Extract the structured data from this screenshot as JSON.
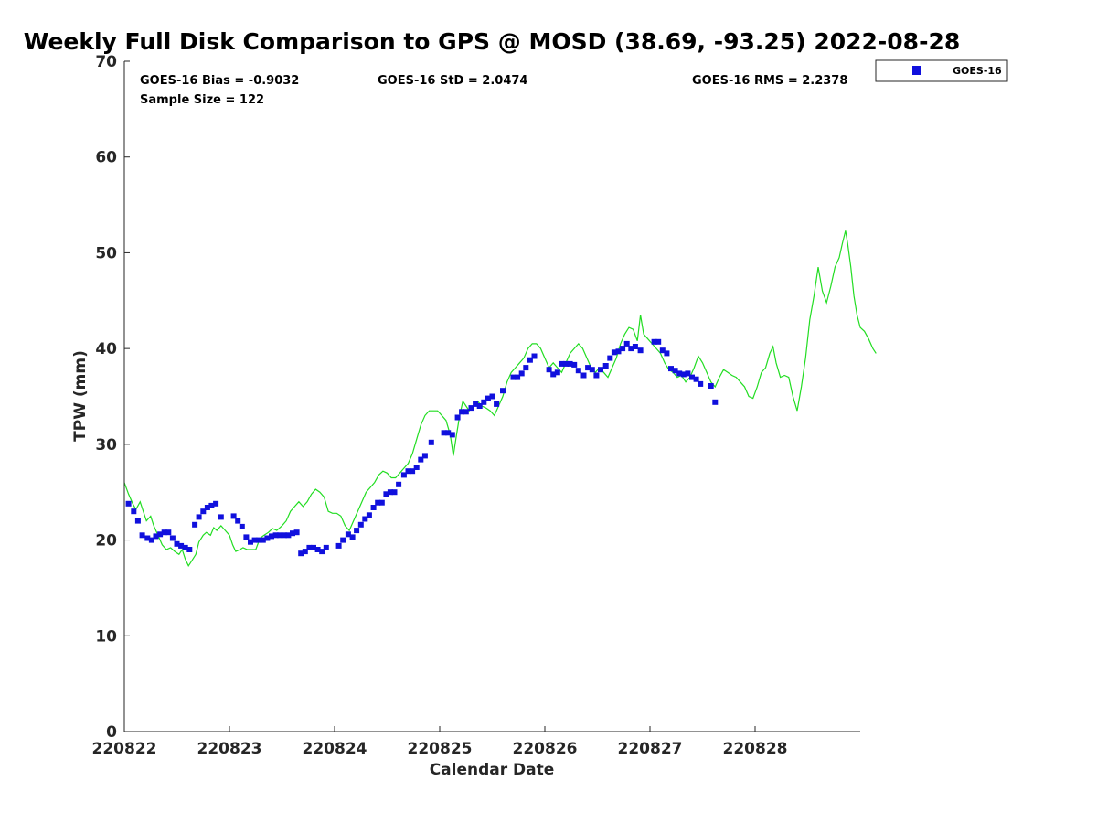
{
  "chart_data": {
    "type": "scatter",
    "title": "Weekly Full Disk Comparison to GPS @ MOSD (38.69, -93.25) 2022-08-28",
    "xlabel": "Calendar Date",
    "ylabel": "TPW (mm)",
    "xlim": [
      0,
      7
    ],
    "ylim": [
      0,
      70
    ],
    "x_ticks": [
      0,
      1,
      2,
      3,
      4,
      5,
      6
    ],
    "x_tick_labels": [
      "220822",
      "220823",
      "220824",
      "220825",
      "220826",
      "220827",
      "220828"
    ],
    "y_ticks": [
      0,
      10,
      20,
      30,
      40,
      50,
      60,
      70
    ],
    "y_tick_labels": [
      "0",
      "10",
      "20",
      "30",
      "40",
      "50",
      "60",
      "70"
    ],
    "stats": {
      "bias": "GOES-16 Bias = -0.9032",
      "std": "GOES-16 StD = 2.0474",
      "rms": "GOES-16 RMS = 2.2378",
      "sample": "Sample Size = 122"
    },
    "legend": {
      "entries": [
        "GOES-16"
      ],
      "position": "top-right outside"
    },
    "series": [
      {
        "name": "GPS",
        "kind": "line",
        "color": "#22dd22",
        "points": [
          [
            0.0,
            26.0
          ],
          [
            0.04,
            24.8
          ],
          [
            0.08,
            23.8
          ],
          [
            0.11,
            23.2
          ],
          [
            0.15,
            24.0
          ],
          [
            0.18,
            23.0
          ],
          [
            0.21,
            22.0
          ],
          [
            0.25,
            22.5
          ],
          [
            0.28,
            21.5
          ],
          [
            0.32,
            20.5
          ],
          [
            0.36,
            19.5
          ],
          [
            0.4,
            19.0
          ],
          [
            0.44,
            19.2
          ],
          [
            0.48,
            18.8
          ],
          [
            0.52,
            18.5
          ],
          [
            0.55,
            19.0
          ],
          [
            0.58,
            18.0
          ],
          [
            0.61,
            17.3
          ],
          [
            0.64,
            17.8
          ],
          [
            0.68,
            18.5
          ],
          [
            0.71,
            19.8
          ],
          [
            0.75,
            20.5
          ],
          [
            0.78,
            20.8
          ],
          [
            0.82,
            20.5
          ],
          [
            0.85,
            21.3
          ],
          [
            0.88,
            21.0
          ],
          [
            0.92,
            21.5
          ],
          [
            0.96,
            21.0
          ],
          [
            1.0,
            20.5
          ],
          [
            1.03,
            19.5
          ],
          [
            1.06,
            18.8
          ],
          [
            1.1,
            19.0
          ],
          [
            1.13,
            19.2
          ],
          [
            1.17,
            19.0
          ],
          [
            1.21,
            19.0
          ],
          [
            1.25,
            19.0
          ],
          [
            1.29,
            20.2
          ],
          [
            1.33,
            20.5
          ],
          [
            1.37,
            20.8
          ],
          [
            1.41,
            21.2
          ],
          [
            1.45,
            21.0
          ],
          [
            1.5,
            21.5
          ],
          [
            1.54,
            22.0
          ],
          [
            1.58,
            23.0
          ],
          [
            1.62,
            23.5
          ],
          [
            1.66,
            24.0
          ],
          [
            1.7,
            23.5
          ],
          [
            1.74,
            24.0
          ],
          [
            1.78,
            24.8
          ],
          [
            1.82,
            25.3
          ],
          [
            1.86,
            25.0
          ],
          [
            1.9,
            24.5
          ],
          [
            1.94,
            23.0
          ],
          [
            1.98,
            22.8
          ],
          [
            2.02,
            22.8
          ],
          [
            2.06,
            22.5
          ],
          [
            2.1,
            21.5
          ],
          [
            2.14,
            21.0
          ],
          [
            2.18,
            22.0
          ],
          [
            2.22,
            23.0
          ],
          [
            2.26,
            24.0
          ],
          [
            2.3,
            25.0
          ],
          [
            2.34,
            25.5
          ],
          [
            2.38,
            26.0
          ],
          [
            2.42,
            26.8
          ],
          [
            2.46,
            27.2
          ],
          [
            2.5,
            27.0
          ],
          [
            2.54,
            26.5
          ],
          [
            2.58,
            26.5
          ],
          [
            2.62,
            27.0
          ],
          [
            2.66,
            27.5
          ],
          [
            2.7,
            28.0
          ],
          [
            2.74,
            29.0
          ],
          [
            2.78,
            30.5
          ],
          [
            2.82,
            32.0
          ],
          [
            2.86,
            33.0
          ],
          [
            2.9,
            33.5
          ],
          [
            2.94,
            33.5
          ],
          [
            2.98,
            33.5
          ],
          [
            3.02,
            33.0
          ],
          [
            3.06,
            32.5
          ],
          [
            3.1,
            31.0
          ],
          [
            3.13,
            28.8
          ],
          [
            3.16,
            31.0
          ],
          [
            3.19,
            33.0
          ],
          [
            3.22,
            34.5
          ],
          [
            3.25,
            34.0
          ],
          [
            3.28,
            33.5
          ],
          [
            3.32,
            34.0
          ],
          [
            3.36,
            34.5
          ],
          [
            3.4,
            34.0
          ],
          [
            3.44,
            33.8
          ],
          [
            3.48,
            33.5
          ],
          [
            3.52,
            33.0
          ],
          [
            3.56,
            34.0
          ],
          [
            3.6,
            35.0
          ],
          [
            3.64,
            36.5
          ],
          [
            3.68,
            37.5
          ],
          [
            3.72,
            38.0
          ],
          [
            3.76,
            38.5
          ],
          [
            3.8,
            39.0
          ],
          [
            3.84,
            40.0
          ],
          [
            3.88,
            40.5
          ],
          [
            3.92,
            40.5
          ],
          [
            3.96,
            40.0
          ],
          [
            4.0,
            39.0
          ],
          [
            4.04,
            38.0
          ],
          [
            4.08,
            38.5
          ],
          [
            4.12,
            38.0
          ],
          [
            4.16,
            37.5
          ],
          [
            4.2,
            38.5
          ],
          [
            4.24,
            39.5
          ],
          [
            4.28,
            40.0
          ],
          [
            4.32,
            40.5
          ],
          [
            4.36,
            40.0
          ],
          [
            4.4,
            39.0
          ],
          [
            4.44,
            38.0
          ],
          [
            4.48,
            37.5
          ],
          [
            4.52,
            38.0
          ],
          [
            4.56,
            37.5
          ],
          [
            4.6,
            37.0
          ],
          [
            4.64,
            38.0
          ],
          [
            4.68,
            39.0
          ],
          [
            4.72,
            40.5
          ],
          [
            4.76,
            41.5
          ],
          [
            4.8,
            42.2
          ],
          [
            4.84,
            42.0
          ],
          [
            4.88,
            40.8
          ],
          [
            4.91,
            43.5
          ],
          [
            4.94,
            41.5
          ],
          [
            4.98,
            41.0
          ],
          [
            5.02,
            40.5
          ],
          [
            5.06,
            40.0
          ],
          [
            5.1,
            39.5
          ],
          [
            5.14,
            38.5
          ],
          [
            5.18,
            37.8
          ],
          [
            5.22,
            37.5
          ],
          [
            5.26,
            37.0
          ],
          [
            5.3,
            37.2
          ],
          [
            5.34,
            36.5
          ],
          [
            5.38,
            37.0
          ],
          [
            5.42,
            38.0
          ],
          [
            5.46,
            39.2
          ],
          [
            5.5,
            38.5
          ],
          [
            5.54,
            37.5
          ],
          [
            5.58,
            36.5
          ],
          [
            5.62,
            36.0
          ],
          [
            5.66,
            37.0
          ],
          [
            5.7,
            37.8
          ],
          [
            5.74,
            37.5
          ],
          [
            5.78,
            37.2
          ],
          [
            5.82,
            37.0
          ],
          [
            5.86,
            36.5
          ],
          [
            5.9,
            36.0
          ],
          [
            5.94,
            35.0
          ],
          [
            5.98,
            34.8
          ],
          [
            6.02,
            36.0
          ],
          [
            6.06,
            37.5
          ],
          [
            6.1,
            38.0
          ],
          [
            6.14,
            39.5
          ],
          [
            6.17,
            40.2
          ],
          [
            6.2,
            38.5
          ],
          [
            6.24,
            37.0
          ],
          [
            6.28,
            37.2
          ],
          [
            6.32,
            37.0
          ],
          [
            6.36,
            35.0
          ],
          [
            6.4,
            33.5
          ],
          [
            6.44,
            36.0
          ],
          [
            6.48,
            39.0
          ],
          [
            6.52,
            43.0
          ],
          [
            6.56,
            45.5
          ],
          [
            6.6,
            48.5
          ],
          [
            6.64,
            46.0
          ],
          [
            6.68,
            44.8
          ],
          [
            6.72,
            46.5
          ],
          [
            6.76,
            48.5
          ],
          [
            6.8,
            49.5
          ],
          [
            6.83,
            51.0
          ],
          [
            6.86,
            52.3
          ],
          [
            6.88,
            51.0
          ],
          [
            6.91,
            48.5
          ],
          [
            6.94,
            45.5
          ],
          [
            6.97,
            43.5
          ],
          [
            7.0,
            42.2
          ],
          [
            7.04,
            41.8
          ],
          [
            7.08,
            41.0
          ],
          [
            7.12,
            40.0
          ],
          [
            7.15,
            39.5
          ]
        ]
      },
      {
        "name": "GOES-16",
        "kind": "markers",
        "color": "#1010dd",
        "points": [
          [
            0.04,
            23.8
          ],
          [
            0.09,
            23.0
          ],
          [
            0.13,
            22.0
          ],
          [
            0.17,
            20.5
          ],
          [
            0.22,
            20.2
          ],
          [
            0.26,
            20.0
          ],
          [
            0.3,
            20.4
          ],
          [
            0.34,
            20.6
          ],
          [
            0.38,
            20.8
          ],
          [
            0.42,
            20.8
          ],
          [
            0.46,
            20.2
          ],
          [
            0.5,
            19.6
          ],
          [
            0.54,
            19.4
          ],
          [
            0.58,
            19.2
          ],
          [
            0.62,
            19.0
          ],
          [
            0.67,
            21.6
          ],
          [
            0.71,
            22.4
          ],
          [
            0.75,
            23.0
          ],
          [
            0.79,
            23.4
          ],
          [
            0.83,
            23.6
          ],
          [
            0.87,
            23.8
          ],
          [
            0.92,
            22.4
          ],
          [
            1.04,
            22.5
          ],
          [
            1.08,
            22.0
          ],
          [
            1.12,
            21.4
          ],
          [
            1.16,
            20.3
          ],
          [
            1.2,
            19.8
          ],
          [
            1.24,
            20.0
          ],
          [
            1.28,
            20.0
          ],
          [
            1.32,
            20.0
          ],
          [
            1.36,
            20.2
          ],
          [
            1.4,
            20.4
          ],
          [
            1.44,
            20.5
          ],
          [
            1.48,
            20.5
          ],
          [
            1.52,
            20.5
          ],
          [
            1.56,
            20.5
          ],
          [
            1.6,
            20.7
          ],
          [
            1.64,
            20.8
          ],
          [
            1.68,
            18.6
          ],
          [
            1.72,
            18.8
          ],
          [
            1.76,
            19.2
          ],
          [
            1.8,
            19.2
          ],
          [
            1.84,
            19.0
          ],
          [
            1.88,
            18.8
          ],
          [
            1.92,
            19.2
          ],
          [
            2.04,
            19.4
          ],
          [
            2.08,
            20.0
          ],
          [
            2.13,
            20.6
          ],
          [
            2.17,
            20.3
          ],
          [
            2.21,
            21.0
          ],
          [
            2.25,
            21.6
          ],
          [
            2.29,
            22.2
          ],
          [
            2.33,
            22.6
          ],
          [
            2.37,
            23.4
          ],
          [
            2.41,
            23.9
          ],
          [
            2.45,
            23.9
          ],
          [
            2.49,
            24.8
          ],
          [
            2.53,
            25.0
          ],
          [
            2.57,
            25.0
          ],
          [
            2.61,
            25.8
          ],
          [
            2.66,
            26.8
          ],
          [
            2.7,
            27.2
          ],
          [
            2.74,
            27.2
          ],
          [
            2.78,
            27.6
          ],
          [
            2.82,
            28.4
          ],
          [
            2.86,
            28.8
          ],
          [
            2.92,
            30.2
          ],
          [
            3.04,
            31.2
          ],
          [
            3.08,
            31.2
          ],
          [
            3.12,
            31.0
          ],
          [
            3.17,
            32.8
          ],
          [
            3.21,
            33.4
          ],
          [
            3.25,
            33.4
          ],
          [
            3.3,
            33.8
          ],
          [
            3.34,
            34.2
          ],
          [
            3.38,
            34.0
          ],
          [
            3.42,
            34.4
          ],
          [
            3.46,
            34.8
          ],
          [
            3.5,
            35.0
          ],
          [
            3.54,
            34.2
          ],
          [
            3.6,
            35.6
          ],
          [
            3.7,
            37.0
          ],
          [
            3.74,
            37.0
          ],
          [
            3.78,
            37.4
          ],
          [
            3.82,
            38.0
          ],
          [
            3.86,
            38.8
          ],
          [
            3.9,
            39.2
          ],
          [
            4.04,
            37.8
          ],
          [
            4.08,
            37.3
          ],
          [
            4.12,
            37.5
          ],
          [
            4.16,
            38.4
          ],
          [
            4.2,
            38.4
          ],
          [
            4.24,
            38.4
          ],
          [
            4.28,
            38.3
          ],
          [
            4.32,
            37.7
          ],
          [
            4.37,
            37.2
          ],
          [
            4.41,
            38.0
          ],
          [
            4.45,
            37.8
          ],
          [
            4.49,
            37.2
          ],
          [
            4.53,
            37.8
          ],
          [
            4.58,
            38.2
          ],
          [
            4.62,
            39.0
          ],
          [
            4.66,
            39.6
          ],
          [
            4.7,
            39.7
          ],
          [
            4.74,
            40.0
          ],
          [
            4.78,
            40.5
          ],
          [
            4.82,
            40.0
          ],
          [
            4.86,
            40.2
          ],
          [
            4.91,
            39.8
          ],
          [
            5.04,
            40.7
          ],
          [
            5.08,
            40.7
          ],
          [
            5.12,
            39.8
          ],
          [
            5.16,
            39.5
          ],
          [
            5.2,
            37.9
          ],
          [
            5.24,
            37.7
          ],
          [
            5.28,
            37.4
          ],
          [
            5.32,
            37.3
          ],
          [
            5.36,
            37.4
          ],
          [
            5.4,
            37.0
          ],
          [
            5.44,
            36.8
          ],
          [
            5.48,
            36.3
          ],
          [
            5.58,
            36.1
          ],
          [
            5.62,
            34.4
          ]
        ]
      }
    ]
  }
}
